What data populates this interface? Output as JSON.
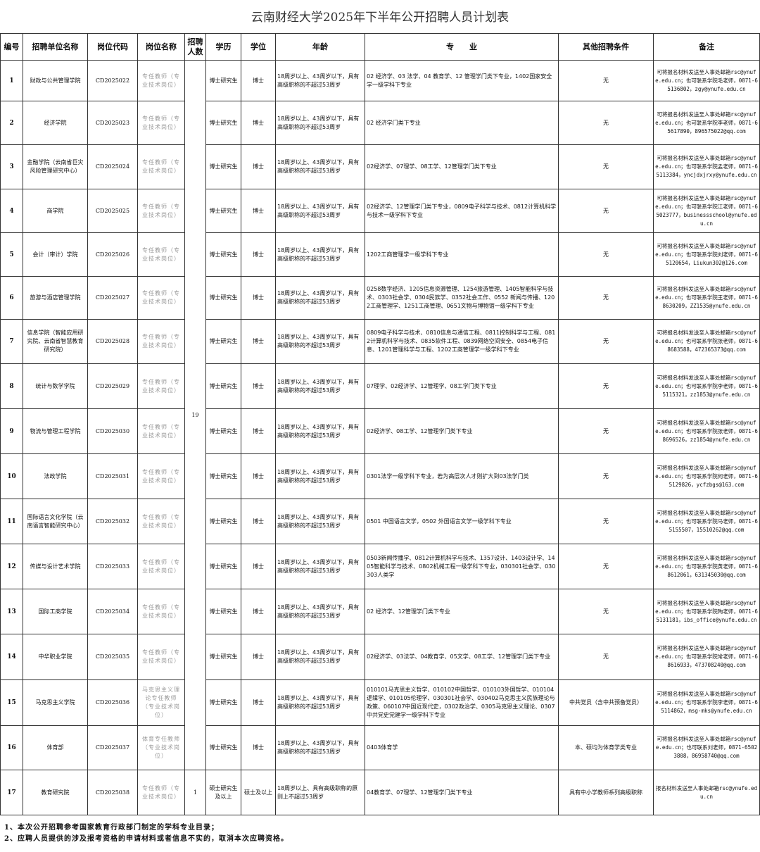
{
  "title": "云南财经大学2025年下半年公开招聘人员计划表",
  "headers": [
    "编号",
    "招聘单位名称",
    "岗位代码",
    "岗位名称",
    "招聘人数",
    "学历",
    "学位",
    "年龄",
    "专　　业",
    "其他招聘条件",
    "备注"
  ],
  "shared_count": "19",
  "rows": [
    {
      "no": "1",
      "unit": "财政与公共管理学院",
      "code": "CD2025022",
      "post": "专任教师（专业技术岗位）",
      "edu": "博士研究生",
      "degree": "博士",
      "age": "18周岁以上、43周岁以下，具有高级职称的不超过53周岁",
      "major": "02 经济学、03 法学、04 教育学、12 管理学门类下专业，1402国家安全学一级学科下专业",
      "other": "无",
      "remark": "可将报名材料发送至人事处邮箱rsc@ynufe.edu.cn；也可联系学院毛老师，0871-65136802，zgy@ynufe.edu.cn"
    },
    {
      "no": "2",
      "unit": "经济学院",
      "code": "CD2025023",
      "post": "专任教师（专业技术岗位）",
      "edu": "博士研究生",
      "degree": "博士",
      "age": "18周岁以上、43周岁以下，具有高级职称的不超过53周岁",
      "major": "02 经济学门类下专业",
      "other": "无",
      "remark": "可将报名材料发送至人事处邮箱rsc@ynufe.edu.cn；也可联系学院李老师，0871-65617890，896575022@qq.com"
    },
    {
      "no": "3",
      "unit": "金融学院（云南省巨灾风险管理研究中心）",
      "code": "CD2025024",
      "post": "专任教师（专业技术岗位）",
      "edu": "博士研究生",
      "degree": "博士",
      "age": "18周岁以上、43周岁以下，具有高级职称的不超过53周岁",
      "major": "02经济学、07理学、08工学、12管理学门类下专业",
      "other": "无",
      "remark": "可将报名材料发送至人事处邮箱rsc@ynufe.edu.cn；也可联系学院孟老师，0871-65113384，yncjdxjrxy@ynufe.edu.cn"
    },
    {
      "no": "4",
      "unit": "商学院",
      "code": "CD2025025",
      "post": "专任教师（专业技术岗位）",
      "edu": "博士研究生",
      "degree": "博士",
      "age": "18周岁以上、43周岁以下，具有高级职称的不超过53周岁",
      "major": "02经济学、12管理学门类下专业，0809电子科学与技术、0812计算机科学与技术一级学科下专业",
      "other": "无",
      "remark": "可将报名材料发送至人事处邮箱rsc@ynufe.edu.cn；也可联系学院江老师，0871-65023777，businessschool@ynufe.edu.cn"
    },
    {
      "no": "5",
      "unit": "会计（审计）学院",
      "code": "CD2025026",
      "post": "专任教师（专业技术岗位）",
      "edu": "博士研究生",
      "degree": "博士",
      "age": "18周岁以上、43周岁以下，具有高级职称的不超过53周岁",
      "major": "1202工商管理学一级学科下专业",
      "other": "无",
      "remark": "可将报名材料发送至人事处邮箱rsc@ynufe.edu.cn；也可联系学院刘老师，0871-65120654，Liukun302@126.com"
    },
    {
      "no": "6",
      "unit": "旅游与酒店管理学院",
      "code": "CD2025027",
      "post": "专任教师（专业技术岗位）",
      "edu": "博士研究生",
      "degree": "博士",
      "age": "18周岁以上、43周岁以下，具有高级职称的不超过53周岁",
      "major": "0258数字经济、1205信息资源管理、1254旅游管理、1405智能科学与技术、0303社会学、0304民族学、0352社会工作、0552 新闻与传播、1202工商管理学、1251工商管理、0651文物与博物馆一级学科下专业",
      "other": "无",
      "remark": "可将报名材料发送至人事处邮箱rsc@ynufe.edu.cn；也可联系学院王老师，0871-68630209，ZZ1535@ynufe.edu.cn"
    },
    {
      "no": "7",
      "unit": "信息学院（智能应用研究院、云南省智慧教育研究院）",
      "code": "CD2025028",
      "post": "专任教师（专业技术岗位）",
      "edu": "博士研究生",
      "degree": "博士",
      "age": "18周岁以上、43周岁以下，具有高级职称的不超过53周岁",
      "major": "0809电子科学与技术、0810信息与通信工程、0811控制科学与工程、0812计算机科学与技术、0835软件工程、0839网络空间安全、0854电子信息、1201管理科学与工程、1202工商管理学一级学科下专业",
      "other": "无",
      "remark": "可将报名材料发送至人事处邮箱rsc@ynufe.edu.cn；也可联系学院张老师，0871-68683588，472365373@qq.com"
    },
    {
      "no": "8",
      "unit": "统计与数学学院",
      "code": "CD2025029",
      "post": "专任教师（专业技术岗位）",
      "edu": "博士研究生",
      "degree": "博士",
      "age": "18周岁以上、43周岁以下，具有高级职称的不超过53周岁",
      "major": "07理学、02经济学、12管理学、08工学门类下专业",
      "other": "无",
      "remark": "可将报名材料发送至人事处邮箱rsc@ynufe.edu.cn；也可联系学院李老师，0871-65115321，zz1853@ynufe.edu.cn"
    },
    {
      "no": "9",
      "unit": "物流与管理工程学院",
      "code": "CD2025030",
      "post": "专任教师（专业技术岗位）",
      "edu": "博士研究生",
      "degree": "博士",
      "age": "18周岁以上、43周岁以下，具有高级职称的不超过53周岁",
      "major": "02经济学、08工学、12管理学门类下专业",
      "other": "无",
      "remark": "可将报名材料发送至人事处邮箱rsc@ynufe.edu.cn；也可联系学院张老师，0871-68696526，zz1854@ynufe.edu.cn"
    },
    {
      "no": "10",
      "unit": "法政学院",
      "code": "CD2025031",
      "post": "专任教师（专业技术岗位）",
      "edu": "博士研究生",
      "degree": "博士",
      "age": "18周岁以上、43周岁以下，具有高级职称的不超过53周岁",
      "major": "0301法学一级学科下专业，若为高层次人才则扩大到03法学门类",
      "other": "无",
      "remark": "可将报名材料发送至人事处邮箱rsc@ynufe.edu.cn；也可联系学院何老师，0871-65129826，ycfzbgs@163.com"
    },
    {
      "no": "11",
      "unit": "国际语言文化学院（云南语言智能研究中心）",
      "code": "CD2025032",
      "post": "专任教师（专业技术岗位）",
      "edu": "博士研究生",
      "degree": "博士",
      "age": "18周岁以上、43周岁以下，具有高级职称的不超过53周岁",
      "major": "0501 中国语言文学，0502 外国语言文学一级学科下专业",
      "other": "无",
      "remark": "可将报名材料发送至人事处邮箱rsc@ynufe.edu.cn；也可联系学院马老师，0871-65155507，15510262@qq.com"
    },
    {
      "no": "12",
      "unit": "传媒与设计艺术学院",
      "code": "CD2025033",
      "post": "专任教师（专业技术岗位）",
      "edu": "博士研究生",
      "degree": "博士",
      "age": "18周岁以上、43周岁以下，具有高级职称的不超过53周岁",
      "major": "0503新闻传播学、0812计算机科学与技术、1357设计、1403设计学、1405智能科学与技术、0802机械工程一级学科下专业，030301社会学、030303人类学",
      "other": "无",
      "remark": "可将报名材料发送至人事处邮箱rsc@ynufe.edu.cn；也可联系学院黄老师，0871-68612061，631345030@qq.com"
    },
    {
      "no": "13",
      "unit": "国际工商学院",
      "code": "CD2025034",
      "post": "专任教师（专业技术岗位）",
      "edu": "博士研究生",
      "degree": "博士",
      "age": "18周岁以上、43周岁以下，具有高级职称的不超过53周岁",
      "major": "02 经济学、12管理学门类下专业",
      "other": "无",
      "remark": "可将报名材料发送至人事处邮箱rsc@ynufe.edu.cn；也可联系学院陶老师，0871-65131181，ibs_office@ynufe.edu.cn"
    },
    {
      "no": "14",
      "unit": "中华职业学院",
      "code": "CD2025035",
      "post": "专任教师（专业技术岗位）",
      "edu": "博士研究生",
      "degree": "博士",
      "age": "18周岁以上、43周岁以下，具有高级职称的不超过53周岁",
      "major": "02经济学、03法学、04教育学、05文学、08工学、12管理学门类下专业",
      "other": "无",
      "remark": "可将报名材料发送至人事处邮箱rsc@ynufe.edu.cn；也可联系学院常老师，0871-68616933，473708240@qq.com"
    },
    {
      "no": "15",
      "unit": "马克思主义学院",
      "code": "CD2025036",
      "post": "马克思主义理论专任教师（专业技术岗位）",
      "edu": "博士研究生",
      "degree": "博士",
      "age": "18周岁以上、43周岁以下，具有高级职称的不超过53周岁",
      "major": "010101马克思主义哲学、010102中国哲学、010103外国哲学、010104逻辑学、010105伦理学、030301社会学、030402马克思主义民族理论与政策、060107中国近现代史，0302政治学、0305马克思主义理论、0307中共党史党建学一级学科下专业",
      "other": "中共党员（含中共预备党员）",
      "remark": "可将报名材料发送至人事处邮箱rsc@ynufe.edu.cn；也可联系学院李老师，0871-65114862，msg-mks@ynufe.edu.cn"
    },
    {
      "no": "16",
      "unit": "体育部",
      "code": "CD2025037",
      "post": "体育专任教师（专业技术岗位）",
      "edu": "博士研究生",
      "degree": "博士",
      "age": "18周岁以上、43周岁以下，具有高级职称的不超过53周岁",
      "major": "0403体育学",
      "other": "本、硕均为体育学类专业",
      "remark": "可将报名材料发送至人事处邮箱rsc@ynufe.edu.cn；也可联系刘老师，0871-65023808，86958740@qq.com"
    },
    {
      "no": "17",
      "unit": "教育研究院",
      "code": "CD2025038",
      "post": "专任教师（专业技术岗位）",
      "count": "1",
      "edu": "硕士研究生及以上",
      "degree": "硕士及以上",
      "age": "18周岁以上、具有高级职称的原则上不超过53周岁",
      "major": "04教育学、07理学、12管理学门类下专业",
      "other": "具有中小学教师系列高级职称",
      "remark": "报名材料发送至人事处邮箱rsc@ynufe.edu.cn"
    }
  ],
  "notes": [
    "1、本次公开招聘参考国家教育行政部门制定的学科专业目录；",
    "2、应聘人员提供的涉及报考资格的申请材料或者信息不实的，取消本次应聘资格。"
  ]
}
